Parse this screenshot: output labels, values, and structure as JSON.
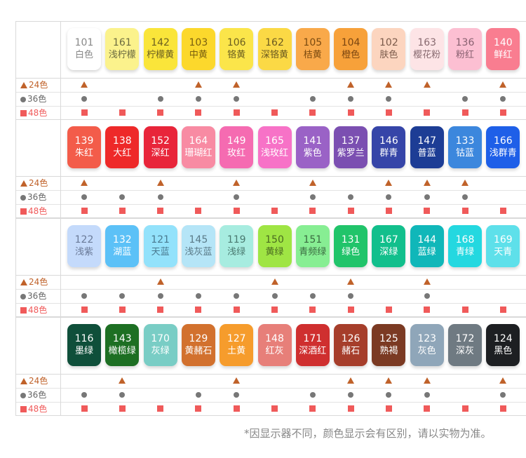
{
  "legend_labels": {
    "tri": "24色",
    "dot": "36色",
    "sq": "48色"
  },
  "colors": {
    "tri": "#c0622a",
    "dot": "#777777",
    "sq": "#f05a5a"
  },
  "chart_data": {
    "type": "table",
    "sections": [
      {
        "swatches": [
          {
            "code": "101",
            "name": "白色",
            "color": "#ffffff",
            "text": "#888888"
          },
          {
            "code": "161",
            "name": "浅柠檬",
            "color": "#fbf28c",
            "text": "#6b6b40"
          },
          {
            "code": "142",
            "name": "柠檬黄",
            "color": "#fae53a",
            "text": "#6b5f20"
          },
          {
            "code": "103",
            "name": "中黄",
            "color": "#fcd82c",
            "text": "#7a6010"
          },
          {
            "code": "106",
            "name": "铬黄",
            "color": "#fbe54a",
            "text": "#6b5f20"
          },
          {
            "code": "162",
            "name": "深铬黄",
            "color": "#fbd945",
            "text": "#6b5a20"
          },
          {
            "code": "105",
            "name": "桔黄",
            "color": "#f9a94a",
            "text": "#7a4a10"
          },
          {
            "code": "104",
            "name": "橙色",
            "color": "#f7a13a",
            "text": "#7a4510"
          },
          {
            "code": "102",
            "name": "肤色",
            "color": "#fcd5bf",
            "text": "#7a5a4a"
          },
          {
            "code": "163",
            "name": "樱花粉",
            "color": "#fde4e6",
            "text": "#886a70"
          },
          {
            "code": "136",
            "name": "粉红",
            "color": "#fcbfd2",
            "text": "#886070"
          },
          {
            "code": "140",
            "name": "鲜红",
            "color": "#f97d90",
            "text": "#ffffff"
          }
        ],
        "marks": {
          "tri": [
            1,
            0,
            0,
            1,
            1,
            0,
            0,
            1,
            1,
            1,
            0,
            1
          ],
          "dot": [
            1,
            0,
            1,
            1,
            1,
            0,
            1,
            1,
            1,
            0,
            1,
            1
          ],
          "sq": [
            1,
            1,
            1,
            1,
            1,
            1,
            1,
            1,
            1,
            1,
            1,
            1
          ]
        }
      },
      {
        "swatches": [
          {
            "code": "139",
            "name": "朱红",
            "color": "#f35c4a",
            "text": "#ffffff"
          },
          {
            "code": "138",
            "name": "大红",
            "color": "#ee2929",
            "text": "#ffffff"
          },
          {
            "code": "152",
            "name": "深红",
            "color": "#e8253a",
            "text": "#ffffff"
          },
          {
            "code": "164",
            "name": "珊瑚红",
            "color": "#f88ba3",
            "text": "#ffffff"
          },
          {
            "code": "149",
            "name": "玫红",
            "color": "#f56bb1",
            "text": "#ffffff"
          },
          {
            "code": "165",
            "name": "浅玫红",
            "color": "#f772c7",
            "text": "#ffffff"
          },
          {
            "code": "141",
            "name": "紫色",
            "color": "#9a62c6",
            "text": "#ffffff"
          },
          {
            "code": "137",
            "name": "紫罗兰",
            "color": "#7b4fb1",
            "text": "#ffffff"
          },
          {
            "code": "146",
            "name": "群青",
            "color": "#3645a8",
            "text": "#ffffff"
          },
          {
            "code": "147",
            "name": "普蓝",
            "color": "#1d3d95",
            "text": "#ffffff"
          },
          {
            "code": "133",
            "name": "钴蓝",
            "color": "#3c87dd",
            "text": "#ffffff"
          },
          {
            "code": "166",
            "name": "浅群青",
            "color": "#1e5fe8",
            "text": "#ffffff"
          }
        ],
        "marks": {
          "tri": [
            1,
            0,
            1,
            0,
            1,
            0,
            1,
            0,
            1,
            1,
            1,
            0
          ],
          "dot": [
            1,
            1,
            1,
            0,
            1,
            0,
            1,
            1,
            1,
            1,
            1,
            0
          ],
          "sq": [
            1,
            1,
            1,
            1,
            1,
            1,
            1,
            1,
            1,
            1,
            1,
            1
          ]
        }
      },
      {
        "swatches": [
          {
            "code": "122",
            "name": "浅紫",
            "color": "#c4dafb",
            "text": "#6a7a98"
          },
          {
            "code": "132",
            "name": "湖蓝",
            "color": "#5cc1f7",
            "text": "#ffffff"
          },
          {
            "code": "121",
            "name": "天蓝",
            "color": "#93e2fb",
            "text": "#4a7a90"
          },
          {
            "code": "145",
            "name": "浅灰蓝",
            "color": "#b5e5f7",
            "text": "#5a7a88"
          },
          {
            "code": "119",
            "name": "浅绿",
            "color": "#a7ece0",
            "text": "#4a7a70"
          },
          {
            "code": "150",
            "name": "黄绿",
            "color": "#9fe544",
            "text": "#4a6a20"
          },
          {
            "code": "151",
            "name": "青频绿",
            "color": "#87ee93",
            "text": "#3a6a40"
          },
          {
            "code": "131",
            "name": "绿色",
            "color": "#21c46a",
            "text": "#ffffff"
          },
          {
            "code": "167",
            "name": "深绿",
            "color": "#12bf8c",
            "text": "#ffffff"
          },
          {
            "code": "144",
            "name": "蓝绿",
            "color": "#10b7b9",
            "text": "#ffffff"
          },
          {
            "code": "168",
            "name": "青绿",
            "color": "#24d8e0",
            "text": "#ffffff"
          },
          {
            "code": "169",
            "name": "天青",
            "color": "#5ee0ea",
            "text": "#ffffff"
          }
        ],
        "marks": {
          "tri": [
            0,
            0,
            1,
            0,
            0,
            1,
            0,
            1,
            0,
            1,
            0,
            0
          ],
          "dot": [
            1,
            1,
            1,
            1,
            1,
            1,
            1,
            1,
            0,
            1,
            0,
            0
          ],
          "sq": [
            1,
            1,
            1,
            1,
            1,
            1,
            1,
            1,
            1,
            1,
            1,
            1
          ]
        }
      },
      {
        "swatches": [
          {
            "code": "116",
            "name": "墨绿",
            "color": "#0f4f3a",
            "text": "#ffffff"
          },
          {
            "code": "143",
            "name": "橄榄绿",
            "color": "#1d6f23",
            "text": "#ffffff"
          },
          {
            "code": "170",
            "name": "灰绿",
            "color": "#79cdc5",
            "text": "#ffffff"
          },
          {
            "code": "129",
            "name": "黄赭石",
            "color": "#d2712e",
            "text": "#ffffff"
          },
          {
            "code": "127",
            "name": "土黄",
            "color": "#f69c2c",
            "text": "#ffffff"
          },
          {
            "code": "148",
            "name": "红灰",
            "color": "#e77f79",
            "text": "#ffffff"
          },
          {
            "code": "171",
            "name": "深酒红",
            "color": "#cf2f2f",
            "text": "#ffffff"
          },
          {
            "code": "126",
            "name": "赭石",
            "color": "#a63e2b",
            "text": "#ffffff"
          },
          {
            "code": "125",
            "name": "熟褐",
            "color": "#7b3a23",
            "text": "#ffffff"
          },
          {
            "code": "123",
            "name": "灰色",
            "color": "#8fa6b9",
            "text": "#ffffff"
          },
          {
            "code": "172",
            "name": "深灰",
            "color": "#6f7a82",
            "text": "#ffffff"
          },
          {
            "code": "124",
            "name": "黑色",
            "color": "#1d1f22",
            "text": "#ffffff"
          }
        ],
        "marks": {
          "tri": [
            0,
            1,
            0,
            0,
            1,
            0,
            0,
            1,
            1,
            1,
            0,
            1
          ],
          "dot": [
            1,
            1,
            0,
            1,
            1,
            0,
            1,
            1,
            1,
            1,
            0,
            1
          ],
          "sq": [
            1,
            1,
            1,
            1,
            1,
            1,
            1,
            1,
            1,
            1,
            1,
            1
          ]
        }
      }
    ]
  },
  "footnote": "*因显示器不同，颜色显示会有区别，请以实物为准。"
}
